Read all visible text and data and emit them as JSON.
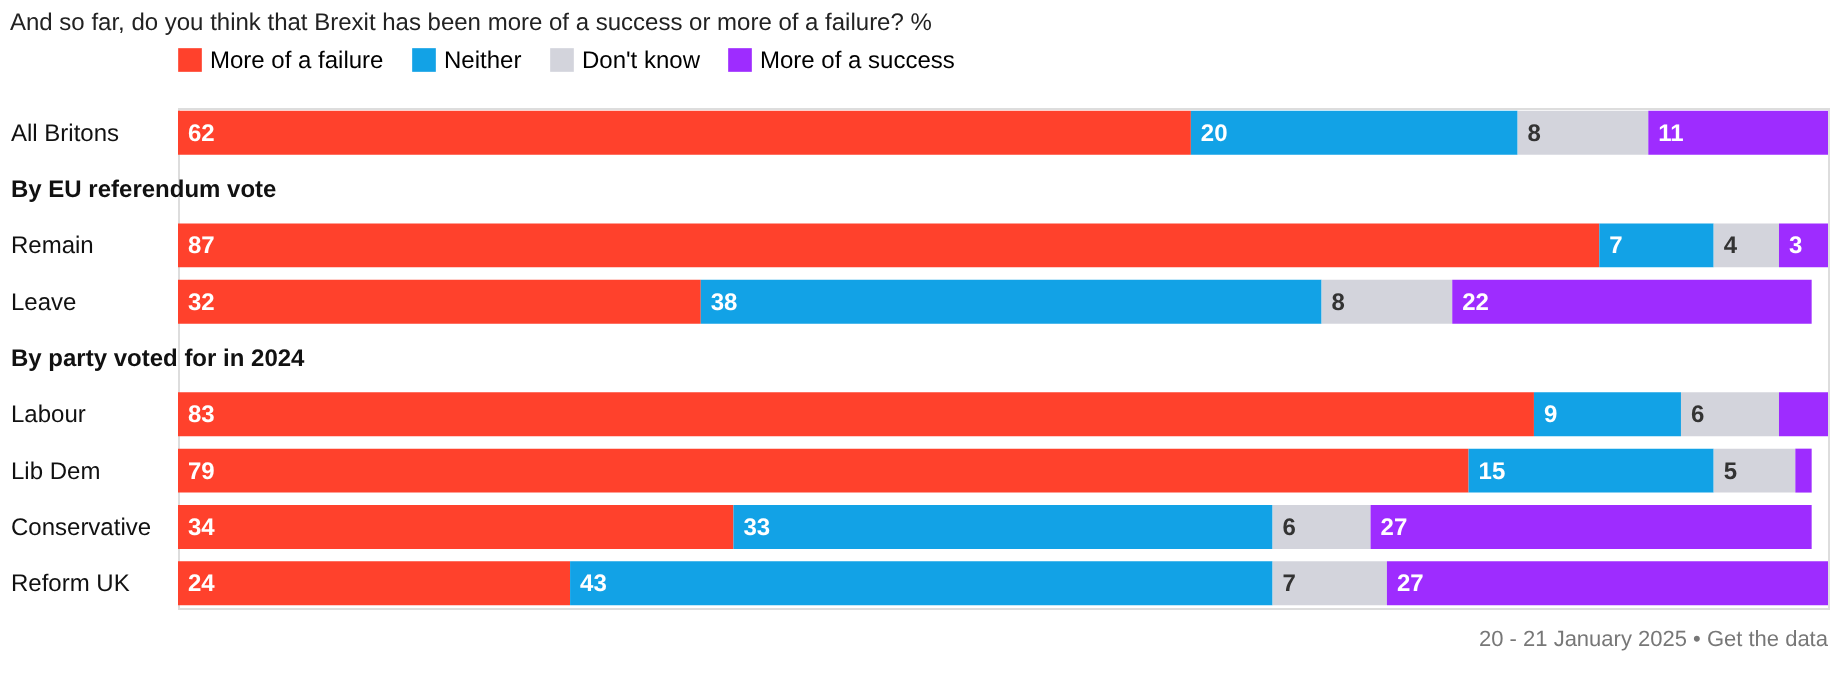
{
  "chart_data": {
    "type": "bar",
    "orientation": "horizontal",
    "stacked": true,
    "title": "And so far, do you think that Brexit has been more of a success or more of a failure? %",
    "categories": [
      "All Britons",
      "By EU referendum vote",
      "Remain",
      "Leave",
      "By party voted for in 2024",
      "Labour",
      "Lib Dem",
      "Conservative",
      "Reform UK"
    ],
    "series": [
      {
        "name": "More of a failure",
        "color": "#ff412c",
        "values": [
          62,
          null,
          87,
          32,
          null,
          83,
          79,
          34,
          24
        ]
      },
      {
        "name": "Neither",
        "color": "#12a2e6",
        "values": [
          20,
          null,
          7,
          38,
          null,
          9,
          15,
          33,
          43
        ]
      },
      {
        "name": "Don't know",
        "color": "#d3d4dc",
        "values": [
          8,
          null,
          4,
          8,
          null,
          6,
          5,
          6,
          7
        ]
      },
      {
        "name": "More of a success",
        "color": "#9e2cff",
        "values": [
          11,
          null,
          3,
          22,
          null,
          3,
          1,
          27,
          27
        ],
        "value_labels": [
          "11",
          null,
          "3",
          "22",
          null,
          null,
          null,
          "27",
          "27"
        ]
      }
    ],
    "xlim": [
      0,
      101
    ],
    "tick_labels": "y",
    "legend": "top",
    "data_labels": true,
    "annotations": [
      "20 - 21 January 2025 • Get the data"
    ]
  }
}
